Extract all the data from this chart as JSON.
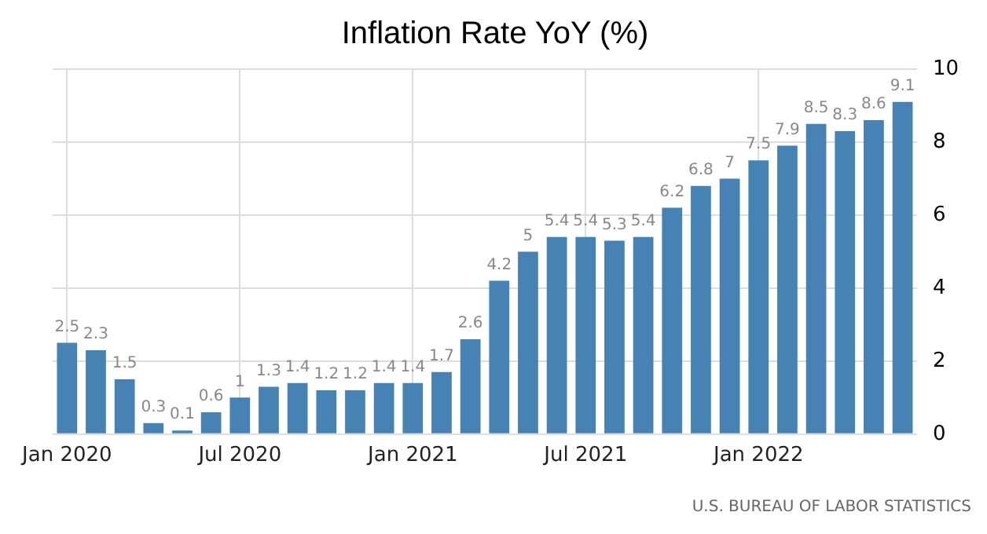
{
  "chart_data": {
    "type": "bar",
    "title": "Inflation Rate YoY (%)",
    "categories": [
      "Jan 2020",
      null,
      null,
      null,
      null,
      null,
      "Jul 2020",
      null,
      null,
      null,
      null,
      null,
      "Jan 2021",
      null,
      null,
      null,
      null,
      null,
      "Jul 2021",
      null,
      null,
      null,
      null,
      null,
      "Jan 2022",
      null,
      null,
      null,
      null,
      null
    ],
    "values": [
      2.5,
      2.3,
      1.5,
      0.3,
      0.1,
      0.6,
      1,
      1.3,
      1.4,
      1.2,
      1.2,
      1.4,
      1.4,
      1.7,
      2.6,
      4.2,
      5,
      5.4,
      5.4,
      5.3,
      5.4,
      6.2,
      6.8,
      7,
      7.5,
      7.9,
      8.5,
      8.3,
      8.6,
      9.1
    ],
    "color": "#4682b4",
    "ylim": [
      0,
      10
    ],
    "yticks": [
      0,
      2,
      4,
      6,
      8,
      10
    ],
    "grid": true,
    "data_labels": true,
    "annotations": [
      "U.S. BUREAU OF LABOR STATISTICS"
    ]
  }
}
